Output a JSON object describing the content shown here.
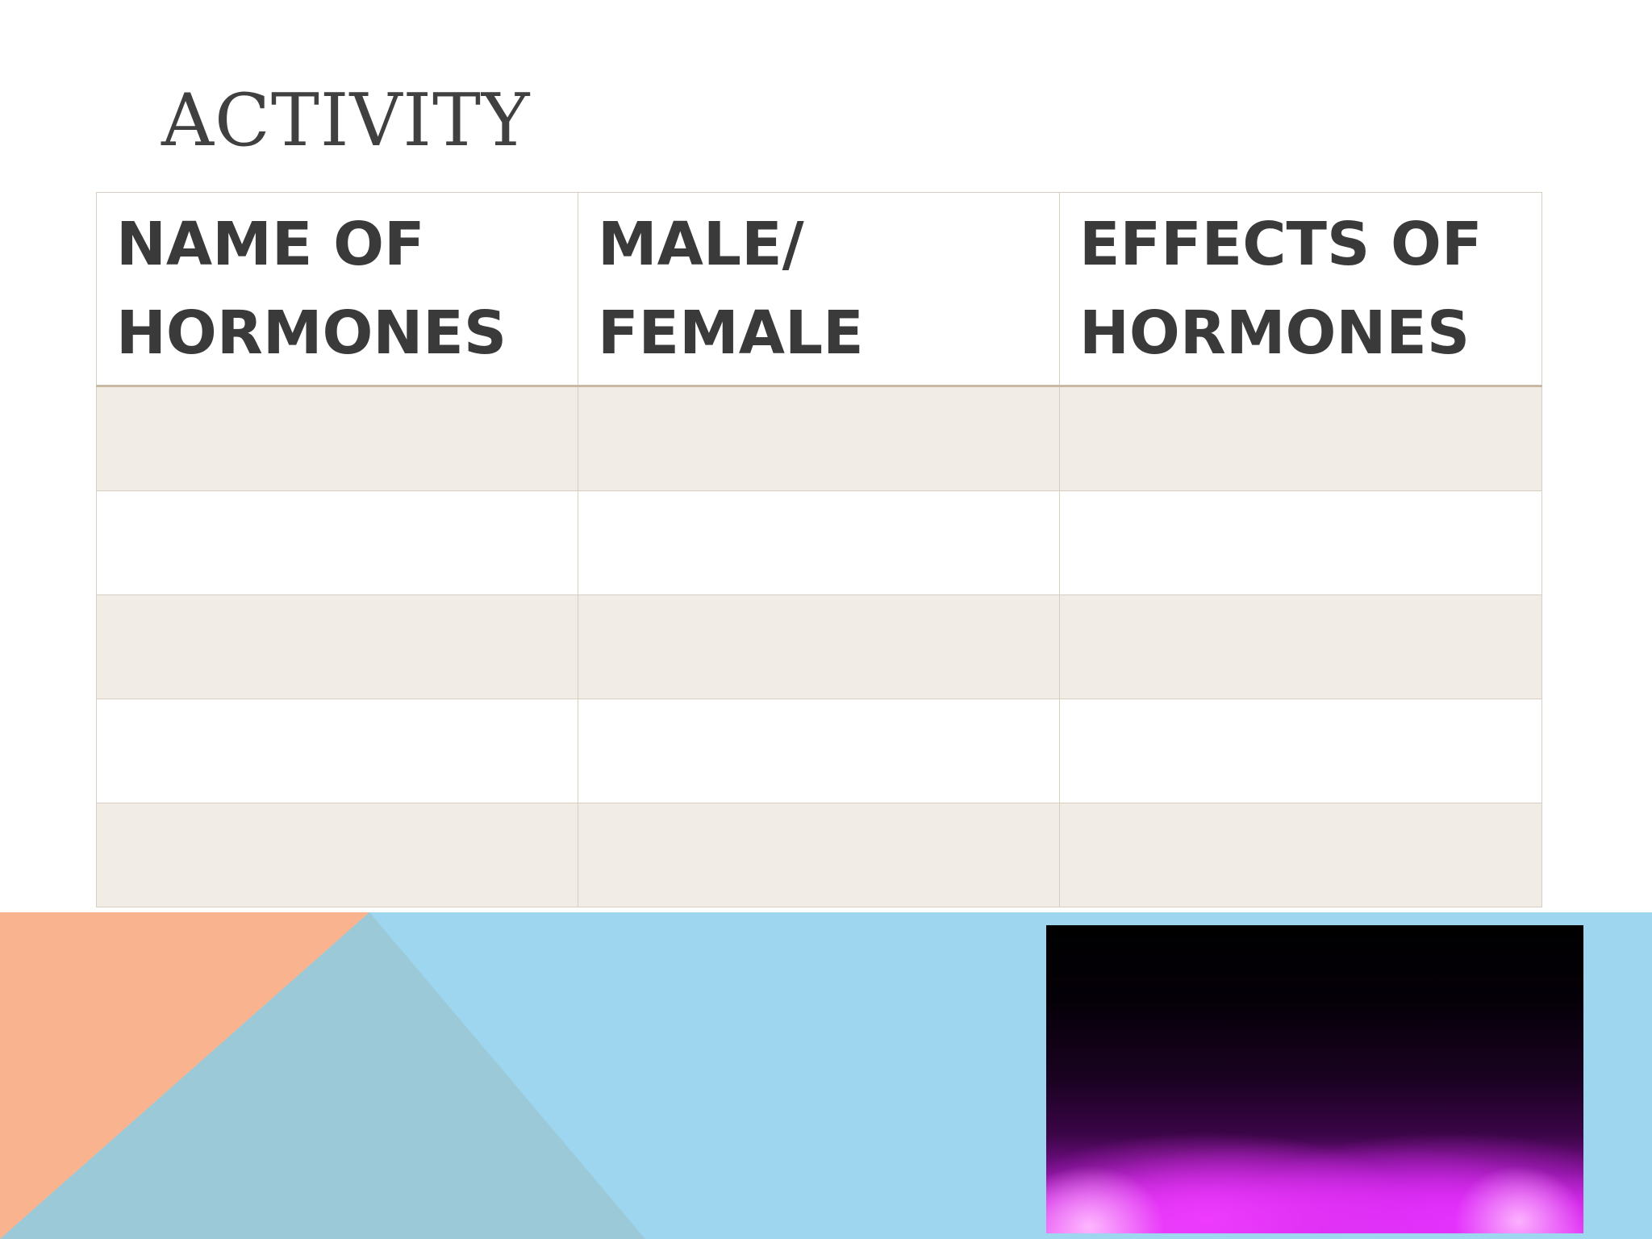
{
  "slide": {
    "title": "ACTIVITY"
  },
  "table": {
    "headers": [
      "NAME OF HORMONES",
      "MALE/ FEMALE",
      "EFFECTS OF HORMONES"
    ],
    "rows": [
      [
        "",
        "",
        ""
      ],
      [
        "",
        "",
        ""
      ],
      [
        "",
        "",
        ""
      ],
      [
        "",
        "",
        ""
      ],
      [
        "",
        "",
        ""
      ]
    ]
  },
  "decor": {
    "band_color": "#9dd6ee",
    "peach_color": "#f9b48f",
    "overlap_color": "#9bc9d8",
    "photo": "magenta-smoke-image"
  }
}
